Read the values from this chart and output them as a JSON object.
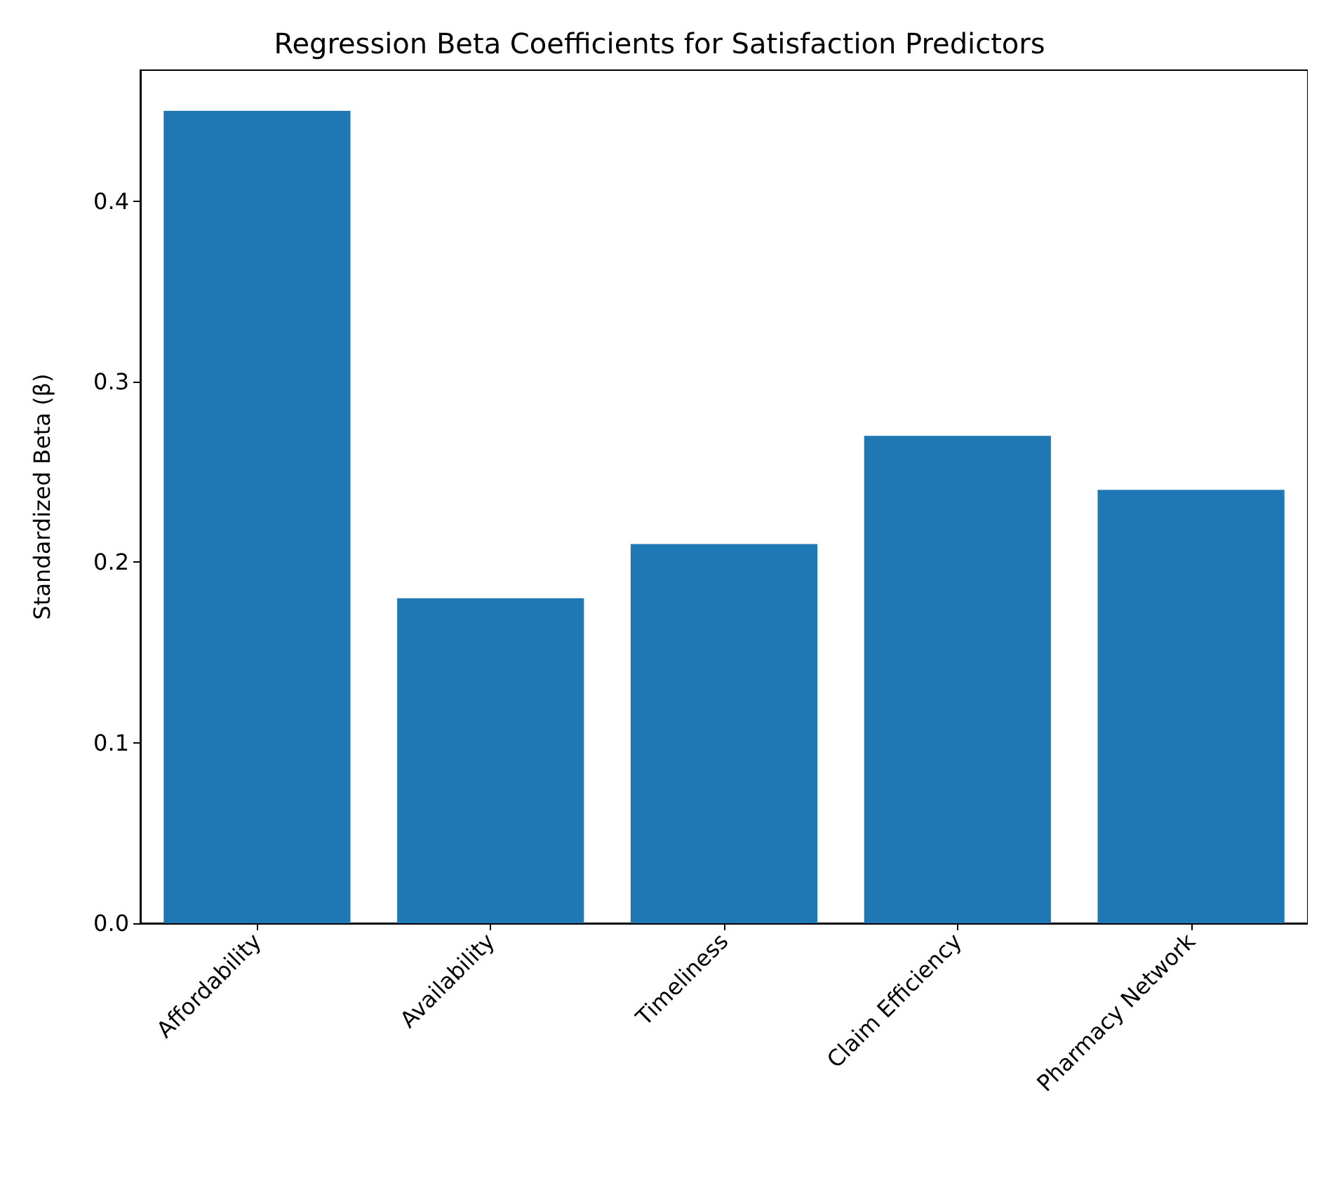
{
  "chart_data": {
    "type": "bar",
    "title": "Regression Beta Coefficients for Satisfaction Predictors",
    "ylabel": "Standardized Beta (β)",
    "categories": [
      "Affordability",
      "Availability",
      "Timeliness",
      "Claim Efficiency",
      "Pharmacy Network"
    ],
    "values": [
      0.45,
      0.18,
      0.21,
      0.27,
      0.24
    ],
    "color": "#1f77b4",
    "ylim": [
      0,
      0.4725
    ],
    "yticks": [
      {
        "value": 0,
        "label": "0.0"
      },
      0.1,
      0.2,
      0.3,
      0.4
    ],
    "grid": false
  }
}
